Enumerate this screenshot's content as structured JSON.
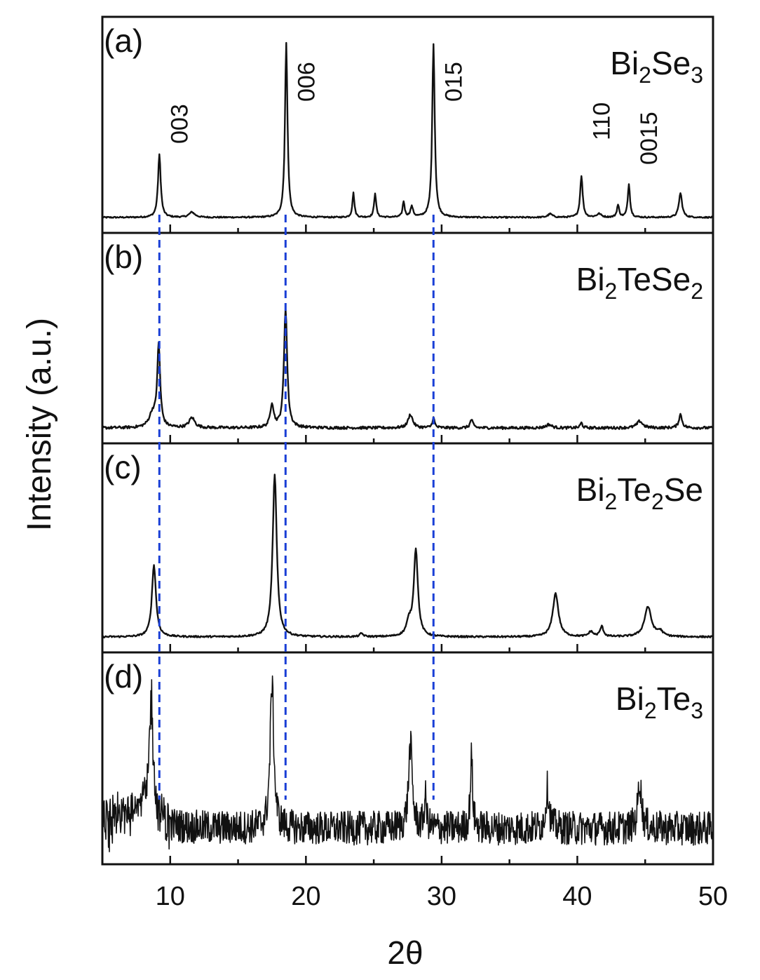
{
  "chart_data": {
    "type": "line",
    "xlabel": "2θ",
    "ylabel": "Intensity (a.u.)",
    "xlim": [
      5,
      50
    ],
    "x_ticks": [
      10,
      20,
      30,
      40,
      50
    ],
    "grid": false,
    "reference_lines_x": [
      9.2,
      18.5,
      29.4
    ],
    "reference_line_color": "#1a3fd6",
    "panels": [
      {
        "label": "(a)",
        "compound": {
          "base": "Bi",
          "parts": [
            {
              "t": "Bi",
              "s": false
            },
            {
              "t": "2",
              "s": true
            },
            {
              "t": "Se",
              "s": false
            },
            {
              "t": "3",
              "s": true
            }
          ]
        },
        "noise": 0.004,
        "peaks": [
          {
            "x": 9.2,
            "h": 0.36,
            "w": 0.12
          },
          {
            "x": 11.6,
            "h": 0.03,
            "w": 0.25
          },
          {
            "x": 18.55,
            "h": 1.0,
            "w": 0.11
          },
          {
            "x": 23.5,
            "h": 0.14,
            "w": 0.09
          },
          {
            "x": 25.1,
            "h": 0.14,
            "w": 0.09
          },
          {
            "x": 27.2,
            "h": 0.09,
            "w": 0.09
          },
          {
            "x": 27.8,
            "h": 0.06,
            "w": 0.12
          },
          {
            "x": 29.4,
            "h": 1.0,
            "w": 0.11
          },
          {
            "x": 38.0,
            "h": 0.02,
            "w": 0.2
          },
          {
            "x": 40.3,
            "h": 0.24,
            "w": 0.11
          },
          {
            "x": 41.6,
            "h": 0.02,
            "w": 0.2
          },
          {
            "x": 43.0,
            "h": 0.07,
            "w": 0.1
          },
          {
            "x": 43.8,
            "h": 0.19,
            "w": 0.1
          },
          {
            "x": 47.6,
            "h": 0.14,
            "w": 0.14
          }
        ],
        "peak_labels": [
          {
            "text": "003",
            "x": 9.2
          },
          {
            "text": "006",
            "x": 18.55
          },
          {
            "text": "015",
            "x": 29.4
          },
          {
            "text": "110",
            "x": 40.3
          },
          {
            "text": "0015",
            "x": 43.8
          }
        ]
      },
      {
        "label": "(b)",
        "compound": {
          "base": "Bi",
          "parts": [
            {
              "t": "Bi",
              "s": false
            },
            {
              "t": "2",
              "s": true
            },
            {
              "t": "TeSe",
              "s": false
            },
            {
              "t": "2",
              "s": true
            }
          ]
        },
        "noise": 0.008,
        "peaks": [
          {
            "x": 8.7,
            "h": 0.08,
            "w": 0.3
          },
          {
            "x": 9.15,
            "h": 0.48,
            "w": 0.13
          },
          {
            "x": 11.6,
            "h": 0.06,
            "w": 0.25
          },
          {
            "x": 17.5,
            "h": 0.14,
            "w": 0.15
          },
          {
            "x": 18.5,
            "h": 0.71,
            "w": 0.14
          },
          {
            "x": 27.7,
            "h": 0.08,
            "w": 0.2
          },
          {
            "x": 29.4,
            "h": 0.06,
            "w": 0.1
          },
          {
            "x": 32.2,
            "h": 0.05,
            "w": 0.12
          },
          {
            "x": 37.9,
            "h": 0.02,
            "w": 0.25
          },
          {
            "x": 40.3,
            "h": 0.03,
            "w": 0.1
          },
          {
            "x": 44.6,
            "h": 0.04,
            "w": 0.25
          },
          {
            "x": 47.6,
            "h": 0.08,
            "w": 0.14
          }
        ]
      },
      {
        "label": "(c)",
        "compound": {
          "base": "Bi",
          "parts": [
            {
              "t": "Bi",
              "s": false
            },
            {
              "t": "2",
              "s": true
            },
            {
              "t": "Te",
              "s": false
            },
            {
              "t": "2",
              "s": true
            },
            {
              "t": "Se",
              "s": false
            }
          ]
        },
        "noise": 0.005,
        "peaks": [
          {
            "x": 8.8,
            "h": 0.43,
            "w": 0.18
          },
          {
            "x": 17.7,
            "h": 0.97,
            "w": 0.18
          },
          {
            "x": 24.1,
            "h": 0.02,
            "w": 0.15
          },
          {
            "x": 27.6,
            "h": 0.08,
            "w": 0.22
          },
          {
            "x": 28.1,
            "h": 0.52,
            "w": 0.18
          },
          {
            "x": 38.4,
            "h": 0.26,
            "w": 0.25
          },
          {
            "x": 41.0,
            "h": 0.03,
            "w": 0.2
          },
          {
            "x": 41.8,
            "h": 0.06,
            "w": 0.15
          },
          {
            "x": 45.2,
            "h": 0.18,
            "w": 0.3
          },
          {
            "x": 46.1,
            "h": 0.03,
            "w": 0.25
          }
        ]
      },
      {
        "label": "(d)",
        "compound": {
          "base": "Bi",
          "parts": [
            {
              "t": "Bi",
              "s": false
            },
            {
              "t": "2",
              "s": true
            },
            {
              "t": "Te",
              "s": false
            },
            {
              "t": "3",
              "s": true
            }
          ]
        },
        "noise": 0.1,
        "baseline": 0.12,
        "peaks": [
          {
            "x": 8.6,
            "h": 0.7,
            "w": 0.18
          },
          {
            "x": 7.5,
            "h": 0.15,
            "w": 0.9
          },
          {
            "x": 17.5,
            "h": 0.86,
            "w": 0.16
          },
          {
            "x": 27.7,
            "h": 0.5,
            "w": 0.16
          },
          {
            "x": 28.8,
            "h": 0.18,
            "w": 0.1
          },
          {
            "x": 32.2,
            "h": 0.42,
            "w": 0.1
          },
          {
            "x": 37.8,
            "h": 0.24,
            "w": 0.15
          },
          {
            "x": 44.6,
            "h": 0.28,
            "w": 0.16
          }
        ]
      }
    ]
  }
}
